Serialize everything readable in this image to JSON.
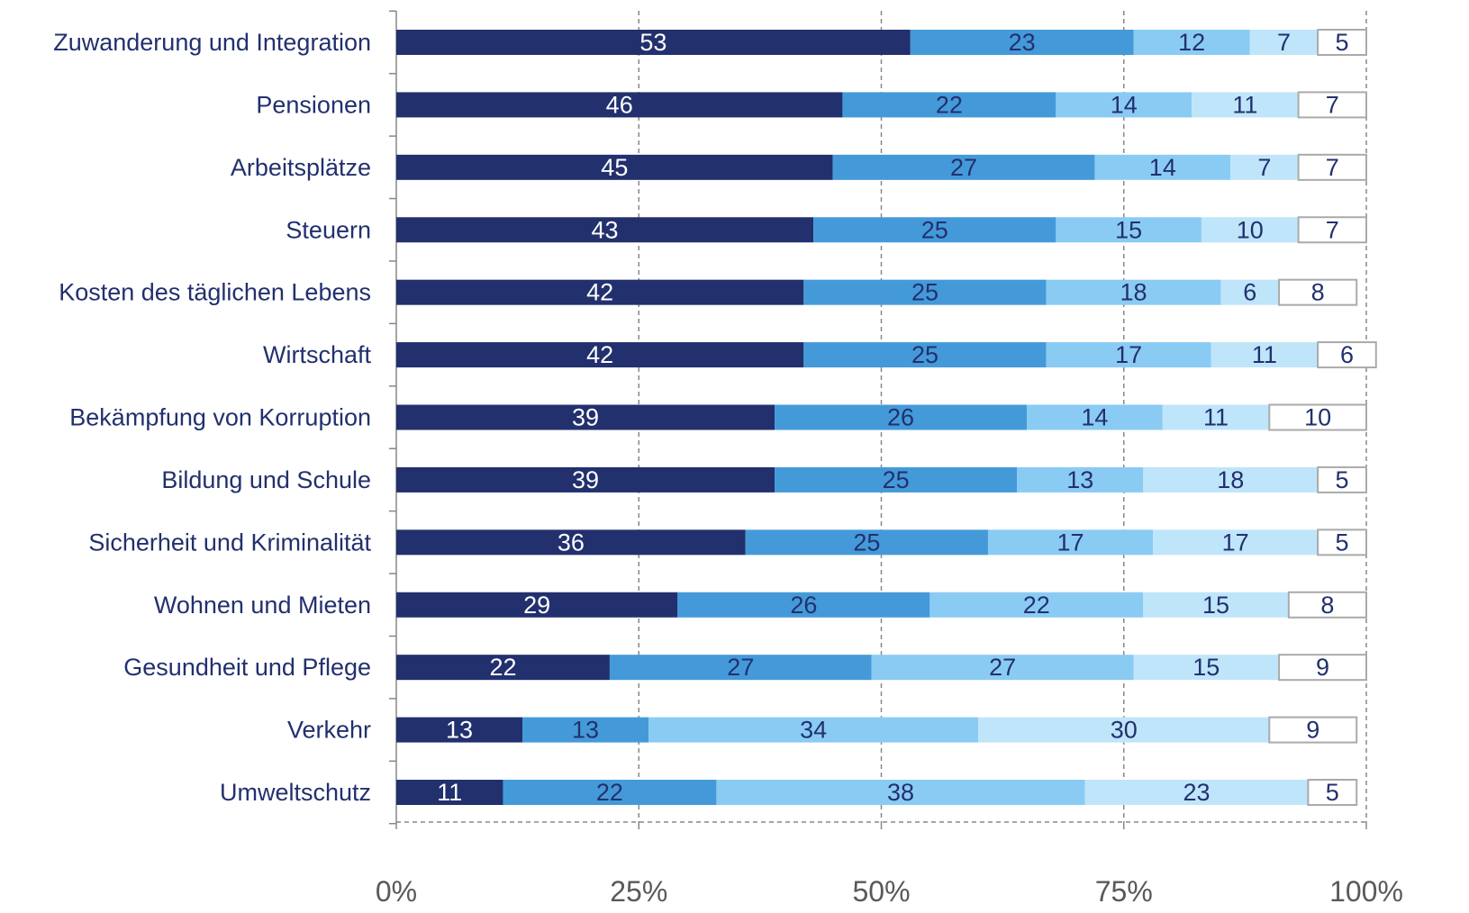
{
  "chart_data": {
    "type": "stacked-barh",
    "categories": [
      "Zuwanderung und Integration",
      "Pensionen",
      "Arbeitsplätze",
      "Steuern",
      "Kosten des täglichen Lebens",
      "Wirtschaft",
      "Bekämpfung von Korruption",
      "Bildung und Schule",
      "Sicherheit und Kriminalität",
      "Wohnen und Mieten",
      "Gesundheit und Pflege",
      "Verkehr",
      "Umweltschutz"
    ],
    "series": [
      {
        "color": "#22306e",
        "values": [
          53,
          46,
          45,
          43,
          42,
          42,
          39,
          39,
          36,
          29,
          22,
          13,
          11
        ]
      },
      {
        "color": "#449ad9",
        "values": [
          23,
          22,
          27,
          25,
          25,
          25,
          26,
          25,
          25,
          26,
          27,
          13,
          22
        ]
      },
      {
        "color": "#8acbf4",
        "values": [
          12,
          14,
          14,
          15,
          18,
          17,
          14,
          13,
          17,
          22,
          27,
          34,
          38
        ]
      },
      {
        "color": "#bfe5fa",
        "values": [
          7,
          11,
          7,
          10,
          6,
          11,
          11,
          18,
          17,
          15,
          15,
          30,
          23
        ]
      },
      {
        "color": "#ffffff",
        "values": [
          5,
          7,
          7,
          7,
          8,
          6,
          10,
          5,
          5,
          8,
          9,
          9,
          5
        ]
      }
    ],
    "xlim": [
      0,
      100
    ],
    "xticks": [
      {
        "value": 0,
        "label": "0%"
      },
      {
        "value": 25,
        "label": "25%"
      },
      {
        "value": 50,
        "label": "50%"
      },
      {
        "value": 75,
        "label": "75%"
      },
      {
        "value": 100,
        "label": "100%"
      }
    ],
    "grid": true
  }
}
